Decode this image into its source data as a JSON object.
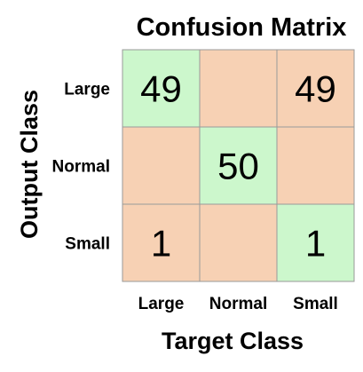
{
  "chart_data": {
    "type": "heatmap",
    "title": "Confusion Matrix",
    "xlabel": "Target Class",
    "ylabel": "Output Class",
    "x_categories": [
      "Large",
      "Normal",
      "Small"
    ],
    "y_categories": [
      "Large",
      "Normal",
      "Small"
    ],
    "values": [
      [
        49,
        null,
        49
      ],
      [
        null,
        50,
        null
      ],
      [
        1,
        null,
        1
      ]
    ],
    "colors": {
      "diagonal": "#ccf7cc",
      "off_diagonal": "#f7d1b4",
      "grid_line": "#9a9a9a"
    },
    "legend": "none"
  }
}
